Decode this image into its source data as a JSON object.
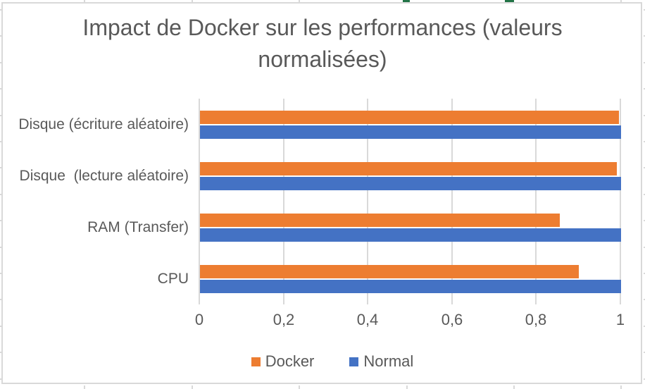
{
  "chart_data": {
    "type": "bar",
    "orientation": "horizontal",
    "title": "Impact de Docker sur les performances (valeurs normalisées)",
    "categories": [
      "Disque (écriture aléatoire)",
      "Disque  (lecture aléatoire)",
      "RAM (Transfer)",
      "CPU"
    ],
    "series": [
      {
        "name": "Docker",
        "color": "#ED7D31",
        "values": [
          0.995,
          0.99,
          0.855,
          0.9
        ]
      },
      {
        "name": "Normal",
        "color": "#4472C4",
        "values": [
          1.0,
          1.0,
          1.0,
          1.0
        ]
      }
    ],
    "xlim": [
      0,
      1
    ],
    "x_ticks": [
      "0",
      "0,2",
      "0,4",
      "0,6",
      "0,8",
      "1"
    ],
    "x_tick_values": [
      0,
      0.2,
      0.4,
      0.6,
      0.8,
      1
    ],
    "grid": "vertical",
    "legend_position": "bottom"
  },
  "colors": {
    "text": "#595959",
    "gridline": "#D9D9D9",
    "chart_border": "#D9D9D9",
    "sheet_gridline": "#D9D9D9",
    "selection_green": "#217346",
    "background": "#FFFFFF"
  }
}
